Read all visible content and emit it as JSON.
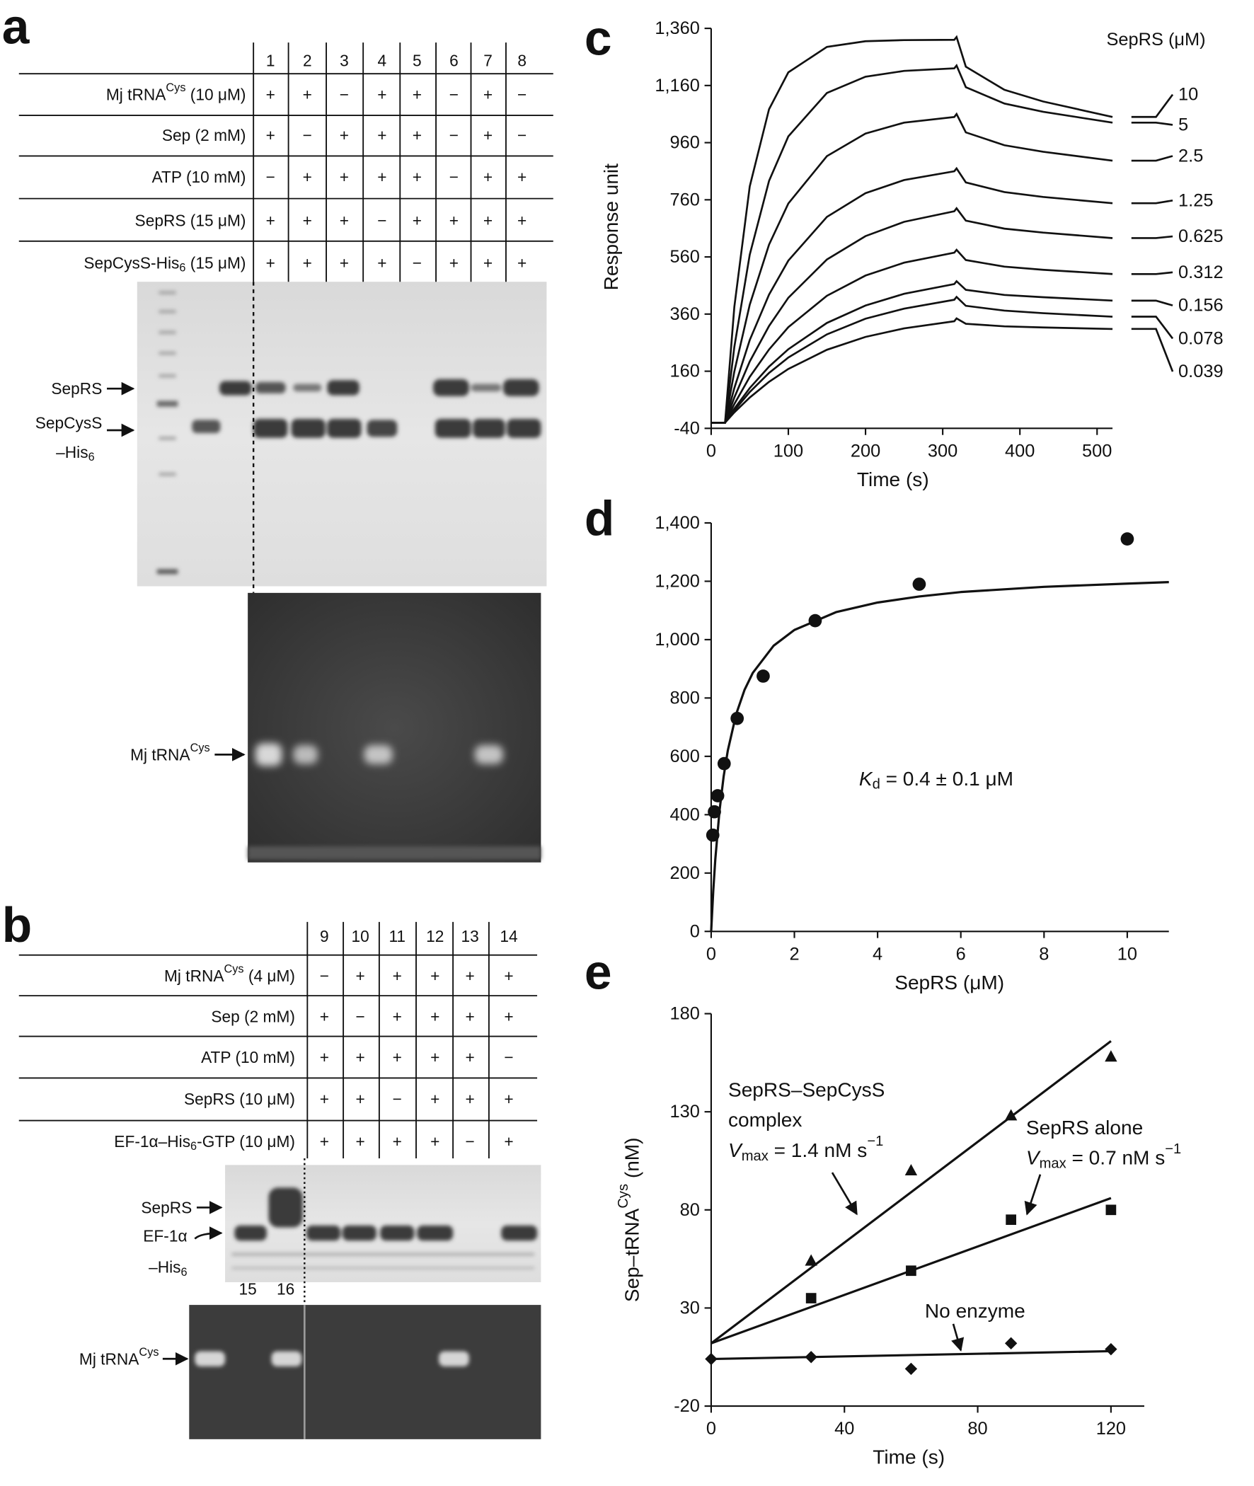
{
  "panel_labels": [
    "a",
    "b",
    "c",
    "d",
    "e"
  ],
  "table_a": {
    "lanes": [
      1,
      2,
      3,
      4,
      5,
      6,
      7,
      8
    ],
    "rows": [
      {
        "label": [
          {
            "t": "Mj tRNA"
          },
          {
            "sup": "Cys"
          },
          {
            "t": " (10 μM)"
          }
        ],
        "cells": [
          "+",
          "+",
          "−",
          "+",
          "+",
          "−",
          "+",
          "−"
        ]
      },
      {
        "label": [
          {
            "t": "Sep (2 mM)"
          }
        ],
        "cells": [
          "+",
          "−",
          "+",
          "+",
          "+",
          "−",
          "+",
          "−"
        ]
      },
      {
        "label": [
          {
            "t": "ATP (10 mM)"
          }
        ],
        "cells": [
          "−",
          "+",
          "+",
          "+",
          "+",
          "−",
          "+",
          "+"
        ]
      },
      {
        "label": [
          {
            "t": "SepRS (15 μM)"
          }
        ],
        "cells": [
          "+",
          "+",
          "+",
          "−",
          "+",
          "+",
          "+",
          "+"
        ]
      },
      {
        "label": [
          {
            "t": "SepCysS-His"
          },
          {
            "sub": "6"
          },
          {
            "t": " (15 μM)"
          }
        ],
        "cells": [
          "+",
          "+",
          "+",
          "+",
          "−",
          "+",
          "+",
          "+"
        ]
      }
    ]
  },
  "gel_a": {
    "labels": [
      [
        {
          "t": "SepRS"
        }
      ],
      [
        {
          "t": "SepCysS"
        }
      ],
      [
        {
          "t": "–His"
        },
        {
          "sub": "6"
        }
      ],
      [
        {
          "t": "Mj tRNA"
        },
        {
          "sup": "Cys"
        }
      ]
    ]
  },
  "table_b": {
    "lanes": [
      9,
      10,
      11,
      12,
      13,
      14
    ],
    "rows": [
      {
        "label": [
          {
            "t": "Mj tRNA"
          },
          {
            "sup": "Cys"
          },
          {
            "t": " (4 μM)"
          }
        ],
        "cells": [
          "−",
          "+",
          "+",
          "+",
          "+",
          "+"
        ]
      },
      {
        "label": [
          {
            "t": "Sep (2 mM)"
          }
        ],
        "cells": [
          "+",
          "−",
          "+",
          "+",
          "+",
          "+"
        ]
      },
      {
        "label": [
          {
            "t": "ATP (10 mM)"
          }
        ],
        "cells": [
          "+",
          "+",
          "+",
          "+",
          "+",
          "−"
        ]
      },
      {
        "label": [
          {
            "t": "SepRS (10 μM)"
          }
        ],
        "cells": [
          "+",
          "+",
          "−",
          "+",
          "+",
          "+"
        ]
      },
      {
        "label": [
          {
            "t": "EF-1α–His"
          },
          {
            "sub": "6"
          },
          {
            "t": "-GTP (10 μM)"
          }
        ],
        "cells": [
          "+",
          "+",
          "+",
          "+",
          "−",
          "+"
        ]
      }
    ]
  },
  "gel_b": {
    "labels": [
      [
        {
          "t": "SepRS"
        }
      ],
      [
        {
          "t": "EF-1α"
        }
      ],
      [
        {
          "t": "–His"
        },
        {
          "sub": "6"
        }
      ],
      [
        {
          "t": "Mj tRNA"
        },
        {
          "sup": "Cys"
        }
      ]
    ],
    "lanes": [
      15,
      16
    ]
  },
  "chart_data": [
    {
      "type": "line",
      "xlabel": "Time (s)",
      "ylabel": "Response unit",
      "legend_title": "SepRS (μM)",
      "x": [
        0,
        18,
        30,
        50,
        75,
        100,
        150,
        200,
        250,
        315,
        318,
        330,
        380,
        430,
        520
      ],
      "xlim": [
        0,
        520
      ],
      "xticks": [
        0,
        100,
        200,
        300,
        400,
        500
      ],
      "ylim": [
        -40,
        1360
      ],
      "yticks": [
        -40,
        160,
        360,
        560,
        760,
        960,
        {
          "value": 1160,
          "label": "1,160"
        },
        {
          "value": 1360,
          "label": "1,360"
        }
      ],
      "series": [
        {
          "name": "10",
          "color": "#111111",
          "values": [
            -20,
            -20,
            385,
            807,
            1077,
            1206,
            1295,
            1315,
            1319,
            1320,
            1330,
            1226,
            1145,
            1104,
            1050
          ]
        },
        {
          "name": "5",
          "color": "#111111",
          "values": [
            -20,
            -20,
            245,
            568,
            826,
            982,
            1134,
            1191,
            1211,
            1220,
            1230,
            1154,
            1097,
            1068,
            1030
          ]
        },
        {
          "name": "2.5",
          "color": "#111111",
          "values": [
            -20,
            -20,
            159,
            393,
            603,
            747,
            913,
            992,
            1030,
            1050,
            1060,
            996,
            951,
            928,
            897
          ]
        },
        {
          "name": "1.25",
          "color": "#111111",
          "values": [
            -20,
            -20,
            101,
            269,
            428,
            547,
            700,
            783,
            829,
            860,
            870,
            821,
            787,
            770,
            748
          ]
        },
        {
          "name": "0.625",
          "color": "#111111",
          "values": [
            -20,
            -20,
            68,
            194,
            318,
            417,
            551,
            633,
            683,
            720,
            730,
            687,
            659,
            645,
            626
          ]
        },
        {
          "name": "0.312",
          "color": "#111111",
          "values": [
            -20,
            -20,
            45,
            140,
            236,
            314,
            424,
            495,
            540,
            575,
            585,
            549,
            526,
            515,
            500
          ]
        },
        {
          "name": "0.156",
          "color": "#111111",
          "values": [
            -20,
            -20,
            29,
            101,
            176,
            237,
            329,
            390,
            431,
            465,
            475,
            445,
            427,
            419,
            407
          ]
        },
        {
          "name": "0.078",
          "color": "#111111",
          "values": [
            -20,
            -20,
            23,
            87,
            154,
            208,
            289,
            344,
            379,
            410,
            420,
            389,
            372,
            363,
            351
          ]
        },
        {
          "name": "0.039",
          "color": "#111111",
          "values": [
            -20,
            -20,
            16,
            68,
            123,
            168,
            235,
            280,
            310,
            335,
            345,
            326,
            317,
            313,
            308
          ]
        }
      ]
    },
    {
      "type": "scatter",
      "xlabel": "SepRS (μM)",
      "xlim": [
        0,
        11
      ],
      "xticks": [
        0,
        2,
        4,
        6,
        8,
        10
      ],
      "ylim": [
        0,
        1400
      ],
      "yticks": [
        0,
        200,
        400,
        600,
        800,
        {
          "value": 1000,
          "label": "1,000"
        },
        {
          "value": 1200,
          "label": "1,200"
        },
        {
          "value": 1400,
          "label": "1,400"
        }
      ],
      "annotations": [
        [
          {
            "i": "K"
          },
          {
            "sub": "d"
          },
          {
            "t": " = 0.4 ± 0.1 μM"
          }
        ]
      ],
      "series": [
        {
          "marker": "circle",
          "color": "#111111",
          "x": [
            0.039,
            0.078,
            0.156,
            0.312,
            0.625,
            1.25,
            2.5,
            5,
            10
          ],
          "values": [
            330,
            410,
            465,
            575,
            730,
            875,
            1065,
            1190,
            1345
          ]
        }
      ],
      "fits": [
        {
          "color": "#111111",
          "x": [
            0,
            0.05,
            0.1,
            0.2,
            0.3,
            0.4,
            0.6,
            0.8,
            1,
            1.5,
            2,
            3,
            4,
            5,
            6,
            8,
            10,
            11
          ],
          "values": [
            0,
            138,
            248,
            413,
            531,
            620,
            744,
            827,
            886,
            979,
            1033,
            1094,
            1127,
            1148,
            1163,
            1181,
            1192,
            1197
          ]
        }
      ]
    },
    {
      "type": "scatter",
      "xlabel": "Time (s)",
      "ylabel": [
        {
          "t": "Sep–tRNA"
        },
        {
          "sup": "Cys"
        },
        {
          "t": " (nM)"
        }
      ],
      "xlim": [
        0,
        130
      ],
      "xticks": [
        0,
        40,
        80,
        120
      ],
      "ylim": [
        -20,
        180
      ],
      "yticks": [
        -20,
        30,
        80,
        130,
        180
      ],
      "annotations": [
        [
          {
            "t": "SepRS–SepCysS"
          }
        ],
        [
          {
            "t": "complex"
          }
        ],
        [
          {
            "i": "V"
          },
          {
            "sub": "max"
          },
          {
            "t": " = 1.4 nM s"
          },
          {
            "sup": "−1"
          }
        ],
        [
          {
            "t": "SepRS alone"
          }
        ],
        [
          {
            "i": "V"
          },
          {
            "sub": "max"
          },
          {
            "t": " = 0.7 nM s"
          },
          {
            "sup": "−1"
          }
        ],
        [
          {
            "t": "No enzyme"
          }
        ]
      ],
      "series": [
        {
          "marker": "triangle",
          "color": "#111111",
          "x": [
            30,
            60,
            90,
            120
          ],
          "values": [
            54,
            100,
            128,
            158
          ]
        },
        {
          "marker": "square",
          "color": "#111111",
          "x": [
            30,
            60,
            90,
            120
          ],
          "values": [
            35,
            49,
            75,
            80
          ]
        },
        {
          "marker": "diamond",
          "color": "#111111",
          "x": [
            0,
            30,
            60,
            90,
            120
          ],
          "values": [
            4,
            5,
            -1,
            12,
            9
          ]
        }
      ],
      "fits": [
        {
          "color": "#111111",
          "x": [
            0,
            120
          ],
          "values": [
            12,
            166
          ]
        },
        {
          "color": "#111111",
          "x": [
            0,
            120
          ],
          "values": [
            12,
            86
          ]
        },
        {
          "color": "#111111",
          "x": [
            0,
            120
          ],
          "values": [
            4,
            8
          ]
        }
      ]
    }
  ]
}
